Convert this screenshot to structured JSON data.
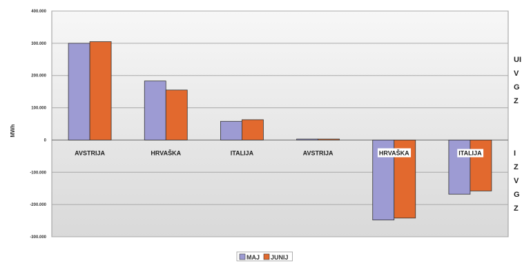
{
  "chart_data": {
    "type": "bar",
    "ylabel": "MWh",
    "ylim": [
      -300000,
      400000
    ],
    "yticks": [
      -300000,
      -200000,
      -100000,
      0,
      100000,
      200000,
      300000,
      400000
    ],
    "ytick_labels": [
      "-300.000",
      "-200.000",
      "-100.000",
      "0",
      "100.000",
      "200.000",
      "300.000",
      "400.000"
    ],
    "categories": [
      "AVSTRIJA",
      "HRVAŠKA",
      "ITALIJA",
      "AVSTRIJA",
      "HRVAŠKA",
      "ITALIJA"
    ],
    "series": [
      {
        "name": "MAJ",
        "color": "#9d9bd3",
        "values": [
          300000,
          183000,
          58000,
          3000,
          -248000,
          -168000
        ]
      },
      {
        "name": "JUNIJ",
        "color": "#e2692e",
        "values": [
          305000,
          155000,
          63000,
          3000,
          -242000,
          -158000
        ]
      }
    ],
    "grid": true,
    "legend_position": "bottom-center",
    "side_labels": [
      {
        "lines": [
          "UI",
          "V",
          "G",
          "Z"
        ]
      },
      {
        "lines": [
          "I",
          "Z",
          "V",
          "G",
          "Z"
        ]
      }
    ]
  }
}
